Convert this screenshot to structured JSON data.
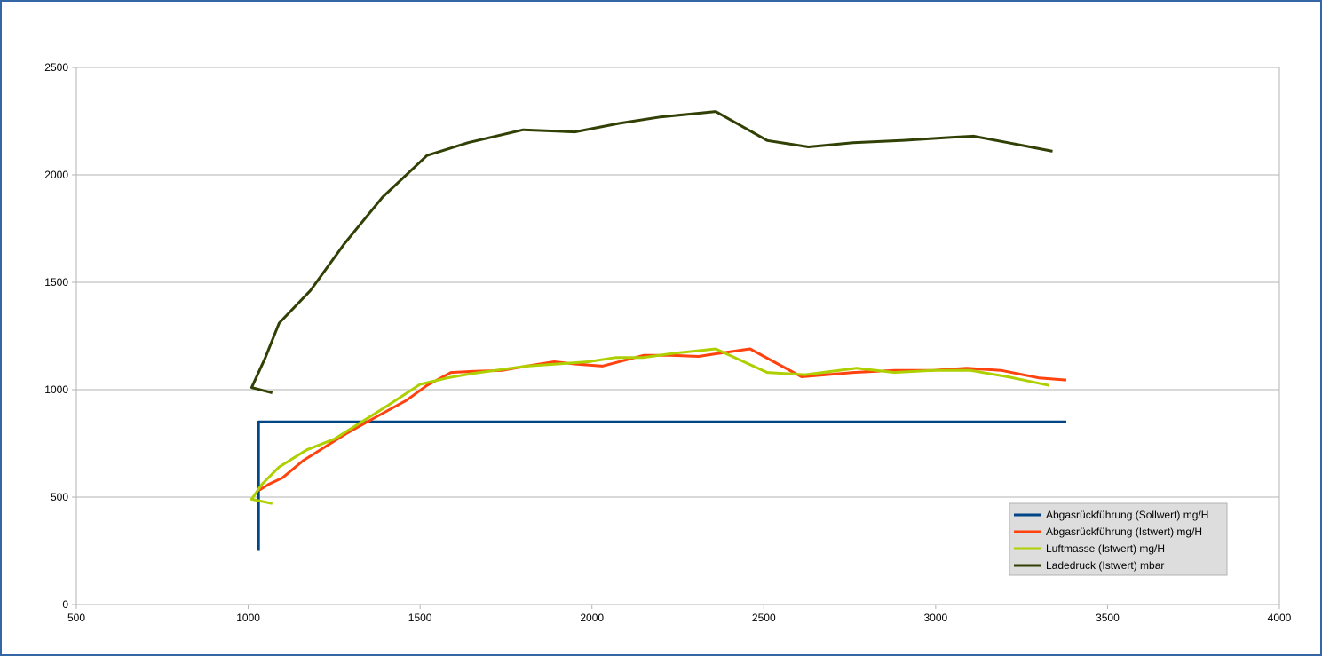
{
  "chart_data": {
    "type": "line",
    "xlim": [
      500,
      4000
    ],
    "ylim": [
      0,
      2500
    ],
    "x_ticks": [
      500,
      1000,
      1500,
      2000,
      2500,
      3000,
      3500,
      4000
    ],
    "y_ticks": [
      0,
      500,
      1000,
      1500,
      2000,
      2500
    ],
    "x_tick_labels": [
      "500",
      "1000",
      "1500",
      "2000",
      "2500",
      "3000",
      "3500",
      "4000"
    ],
    "y_tick_labels": [
      "0",
      "500",
      "1000",
      "1500",
      "2000",
      "2500"
    ],
    "grid": "horizontal",
    "legend_position": "bottom-right",
    "series": [
      {
        "name": "Abgasrückführung (Sollwert)  mg/H",
        "color": "#004586",
        "points": [
          [
            1030,
            250
          ],
          [
            1030,
            850
          ],
          [
            3380,
            850
          ]
        ]
      },
      {
        "name": "Abgasrückführung (Istwert)  mg/H",
        "color": "#ff420e",
        "points": [
          [
            1030,
            530
          ],
          [
            1060,
            560
          ],
          [
            1100,
            590
          ],
          [
            1160,
            670
          ],
          [
            1230,
            740
          ],
          [
            1290,
            800
          ],
          [
            1380,
            880
          ],
          [
            1460,
            950
          ],
          [
            1520,
            1020
          ],
          [
            1590,
            1080
          ],
          [
            1650,
            1085
          ],
          [
            1740,
            1090
          ],
          [
            1810,
            1110
          ],
          [
            1890,
            1130
          ],
          [
            1950,
            1120
          ],
          [
            2030,
            1110
          ],
          [
            2150,
            1160
          ],
          [
            2230,
            1160
          ],
          [
            2310,
            1155
          ],
          [
            2350,
            1165
          ],
          [
            2460,
            1190
          ],
          [
            2610,
            1060
          ],
          [
            2760,
            1080
          ],
          [
            2880,
            1090
          ],
          [
            2990,
            1090
          ],
          [
            3090,
            1100
          ],
          [
            3190,
            1090
          ],
          [
            3300,
            1055
          ],
          [
            3380,
            1045
          ]
        ]
      },
      {
        "name": "Luftmasse (Istwert)  mg/H",
        "color": "#aecf00",
        "points": [
          [
            1070,
            470
          ],
          [
            1010,
            490
          ],
          [
            1040,
            560
          ],
          [
            1090,
            640
          ],
          [
            1170,
            720
          ],
          [
            1250,
            770
          ],
          [
            1320,
            840
          ],
          [
            1400,
            920
          ],
          [
            1500,
            1025
          ],
          [
            1580,
            1055
          ],
          [
            1650,
            1075
          ],
          [
            1720,
            1090
          ],
          [
            1810,
            1110
          ],
          [
            1900,
            1120
          ],
          [
            1990,
            1130
          ],
          [
            2070,
            1150
          ],
          [
            2150,
            1150
          ],
          [
            2240,
            1170
          ],
          [
            2330,
            1185
          ],
          [
            2360,
            1190
          ],
          [
            2510,
            1080
          ],
          [
            2620,
            1070
          ],
          [
            2770,
            1100
          ],
          [
            2880,
            1080
          ],
          [
            2990,
            1090
          ],
          [
            3100,
            1090
          ],
          [
            3210,
            1060
          ],
          [
            3330,
            1020
          ]
        ]
      },
      {
        "name": "Ladedruck (Istwert)  mbar",
        "color": "#314004",
        "points": [
          [
            1070,
            985
          ],
          [
            1010,
            1010
          ],
          [
            1050,
            1150
          ],
          [
            1090,
            1310
          ],
          [
            1180,
            1460
          ],
          [
            1280,
            1680
          ],
          [
            1390,
            1895
          ],
          [
            1520,
            2090
          ],
          [
            1640,
            2150
          ],
          [
            1800,
            2210
          ],
          [
            1950,
            2200
          ],
          [
            2080,
            2240
          ],
          [
            2200,
            2270
          ],
          [
            2360,
            2295
          ],
          [
            2510,
            2160
          ],
          [
            2630,
            2130
          ],
          [
            2760,
            2150
          ],
          [
            2900,
            2160
          ],
          [
            3050,
            2175
          ],
          [
            3110,
            2180
          ],
          [
            3210,
            2150
          ],
          [
            3340,
            2110
          ]
        ]
      }
    ]
  }
}
